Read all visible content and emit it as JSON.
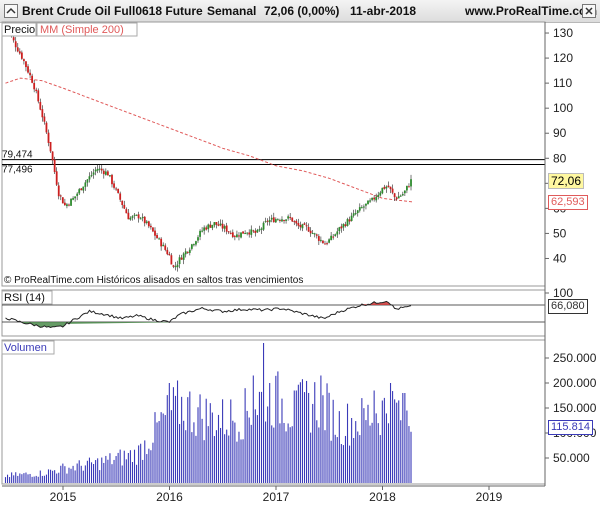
{
  "header": {
    "instrument": "Brent Crude Oil Full0618 Future",
    "period": "Semanal",
    "last_change": "72,06 (0,00%)",
    "date": "11-abr-2018",
    "website": "www.ProRealTime.com",
    "icons": [
      "toggle-icon",
      "close-icon"
    ]
  },
  "colors": {
    "up": "#2e8b2e",
    "down": "#cc1f1f",
    "ma": "#e05a5a",
    "rsi_line": "#222222",
    "rsi_fill_low": "#4a8a4a",
    "rsi_fill_high": "#cc3333",
    "volume": "#3a3ab8",
    "grid_line": "#000000"
  },
  "chart_data": [
    {
      "type": "candlestick",
      "panel": "Precio",
      "legend": "MM (Simple 200)",
      "yticks": [
        "40",
        "50",
        "60",
        "70",
        "80",
        "90",
        "100",
        "110",
        "120",
        "130"
      ],
      "ylim": [
        33,
        136
      ],
      "xticks": [
        "2015",
        "2016",
        "2017",
        "2018",
        "2019"
      ],
      "horizontal_lines": [
        {
          "label": "79,474",
          "value": 79.474
        },
        {
          "label": "77,496",
          "value": 77.496
        }
      ],
      "last_price": "72,06",
      "ma_value": "62,593",
      "footnote": "© ProRealTime.com  Históricos alisados en saltos tras vencimientos",
      "price_keypoints": [
        {
          "x": 2014.46,
          "y": 134
        },
        {
          "x": 2014.52,
          "y": 128
        },
        {
          "x": 2014.62,
          "y": 120
        },
        {
          "x": 2014.72,
          "y": 110
        },
        {
          "x": 2014.8,
          "y": 98
        },
        {
          "x": 2014.88,
          "y": 84
        },
        {
          "x": 2014.96,
          "y": 66
        },
        {
          "x": 2015.02,
          "y": 61
        },
        {
          "x": 2015.1,
          "y": 64
        },
        {
          "x": 2015.2,
          "y": 70
        },
        {
          "x": 2015.32,
          "y": 76
        },
        {
          "x": 2015.42,
          "y": 74
        },
        {
          "x": 2015.52,
          "y": 65
        },
        {
          "x": 2015.62,
          "y": 56
        },
        {
          "x": 2015.72,
          "y": 57
        },
        {
          "x": 2015.82,
          "y": 52
        },
        {
          "x": 2015.92,
          "y": 46
        },
        {
          "x": 2016.0,
          "y": 41
        },
        {
          "x": 2016.04,
          "y": 36
        },
        {
          "x": 2016.1,
          "y": 40
        },
        {
          "x": 2016.2,
          "y": 45
        },
        {
          "x": 2016.32,
          "y": 52
        },
        {
          "x": 2016.42,
          "y": 54
        },
        {
          "x": 2016.52,
          "y": 52
        },
        {
          "x": 2016.62,
          "y": 49
        },
        {
          "x": 2016.72,
          "y": 51
        },
        {
          "x": 2016.82,
          "y": 50
        },
        {
          "x": 2016.92,
          "y": 55
        },
        {
          "x": 2017.02,
          "y": 56
        },
        {
          "x": 2017.14,
          "y": 56
        },
        {
          "x": 2017.2,
          "y": 53
        },
        {
          "x": 2017.3,
          "y": 52
        },
        {
          "x": 2017.4,
          "y": 48
        },
        {
          "x": 2017.46,
          "y": 46
        },
        {
          "x": 2017.52,
          "y": 48
        },
        {
          "x": 2017.6,
          "y": 52
        },
        {
          "x": 2017.7,
          "y": 56
        },
        {
          "x": 2017.8,
          "y": 60
        },
        {
          "x": 2017.9,
          "y": 63
        },
        {
          "x": 2018.0,
          "y": 68
        },
        {
          "x": 2018.05,
          "y": 69
        },
        {
          "x": 2018.12,
          "y": 64
        },
        {
          "x": 2018.2,
          "y": 66
        },
        {
          "x": 2018.28,
          "y": 72
        }
      ],
      "ma_keypoints": [
        {
          "x": 2014.46,
          "y": 110
        },
        {
          "x": 2014.6,
          "y": 112
        },
        {
          "x": 2014.8,
          "y": 111
        },
        {
          "x": 2015.0,
          "y": 108
        },
        {
          "x": 2015.25,
          "y": 104
        },
        {
          "x": 2015.5,
          "y": 100
        },
        {
          "x": 2015.75,
          "y": 96
        },
        {
          "x": 2016.0,
          "y": 92
        },
        {
          "x": 2016.25,
          "y": 88
        },
        {
          "x": 2016.5,
          "y": 84
        },
        {
          "x": 2016.75,
          "y": 81
        },
        {
          "x": 2017.0,
          "y": 77
        },
        {
          "x": 2017.25,
          "y": 75
        },
        {
          "x": 2017.5,
          "y": 72
        },
        {
          "x": 2017.75,
          "y": 68
        },
        {
          "x": 2018.0,
          "y": 64
        },
        {
          "x": 2018.28,
          "y": 62.593
        }
      ]
    },
    {
      "type": "line",
      "panel": "RSI",
      "legend": "RSI (14)",
      "yticks": [
        "100"
      ],
      "ylim": [
        0,
        100
      ],
      "levels": [
        70,
        30
      ],
      "last_value": "66,080",
      "rsi_keypoints": [
        {
          "x": 2014.46,
          "y": 40
        },
        {
          "x": 2014.6,
          "y": 30
        },
        {
          "x": 2014.75,
          "y": 22
        },
        {
          "x": 2014.9,
          "y": 16
        },
        {
          "x": 2015.0,
          "y": 20
        },
        {
          "x": 2015.1,
          "y": 35
        },
        {
          "x": 2015.25,
          "y": 55
        },
        {
          "x": 2015.4,
          "y": 48
        },
        {
          "x": 2015.55,
          "y": 38
        },
        {
          "x": 2015.7,
          "y": 45
        },
        {
          "x": 2015.85,
          "y": 35
        },
        {
          "x": 2016.0,
          "y": 30
        },
        {
          "x": 2016.1,
          "y": 48
        },
        {
          "x": 2016.3,
          "y": 62
        },
        {
          "x": 2016.5,
          "y": 55
        },
        {
          "x": 2016.7,
          "y": 60
        },
        {
          "x": 2016.9,
          "y": 58
        },
        {
          "x": 2017.05,
          "y": 62
        },
        {
          "x": 2017.25,
          "y": 50
        },
        {
          "x": 2017.45,
          "y": 38
        },
        {
          "x": 2017.6,
          "y": 55
        },
        {
          "x": 2017.8,
          "y": 70
        },
        {
          "x": 2017.95,
          "y": 76
        },
        {
          "x": 2018.05,
          "y": 80
        },
        {
          "x": 2018.12,
          "y": 60
        },
        {
          "x": 2018.2,
          "y": 64
        },
        {
          "x": 2018.28,
          "y": 66.08
        }
      ]
    },
    {
      "type": "bar",
      "panel": "Volumen",
      "legend": "Volumen",
      "yticks": [
        "50.000",
        "100.000",
        "150.000",
        "200.000",
        "250.000"
      ],
      "ylim": [
        0,
        280000
      ],
      "last_value": "115.814",
      "volume_keypoints": [
        {
          "x": 2014.46,
          "y": 15000
        },
        {
          "x": 2014.8,
          "y": 20000
        },
        {
          "x": 2015.0,
          "y": 30000
        },
        {
          "x": 2015.3,
          "y": 40000
        },
        {
          "x": 2015.7,
          "y": 60000
        },
        {
          "x": 2015.95,
          "y": 130000
        },
        {
          "x": 2016.1,
          "y": 160000
        },
        {
          "x": 2016.3,
          "y": 140000
        },
        {
          "x": 2016.5,
          "y": 130000
        },
        {
          "x": 2016.7,
          "y": 140000
        },
        {
          "x": 2016.9,
          "y": 180000
        },
        {
          "x": 2017.0,
          "y": 170000
        },
        {
          "x": 2017.2,
          "y": 150000
        },
        {
          "x": 2017.4,
          "y": 170000
        },
        {
          "x": 2017.6,
          "y": 120000
        },
        {
          "x": 2017.8,
          "y": 130000
        },
        {
          "x": 2018.0,
          "y": 150000
        },
        {
          "x": 2018.15,
          "y": 150000
        },
        {
          "x": 2018.28,
          "y": 115814
        }
      ],
      "volume_spikes": [
        {
          "x": 2016.0,
          "y": 200000
        },
        {
          "x": 2016.08,
          "y": 205000
        },
        {
          "x": 2016.88,
          "y": 280000
        },
        {
          "x": 2016.78,
          "y": 215000
        },
        {
          "x": 2017.18,
          "y": 185000
        },
        {
          "x": 2017.42,
          "y": 215000
        },
        {
          "x": 2017.92,
          "y": 185000
        },
        {
          "x": 2018.08,
          "y": 200000
        },
        {
          "x": 2018.2,
          "y": 180000
        }
      ]
    }
  ]
}
